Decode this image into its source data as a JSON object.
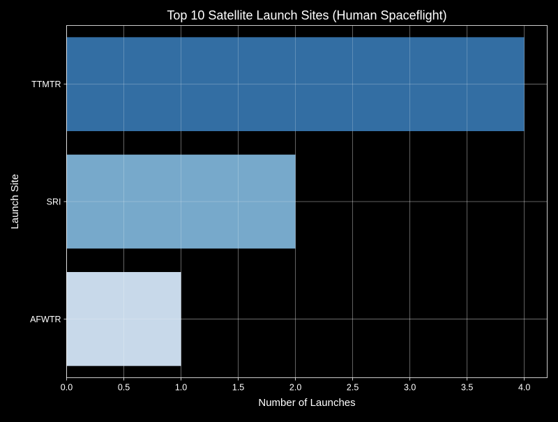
{
  "chart_data": {
    "type": "bar",
    "orientation": "horizontal",
    "title": "Top 10 Satellite Launch Sites (Human Spaceflight)",
    "xlabel": "Number of Launches",
    "ylabel": "Launch Site",
    "categories": [
      "AFWTR",
      "SRI",
      "TTMTR"
    ],
    "values": [
      1,
      2,
      4
    ],
    "bar_colors": [
      "#c8d9ea",
      "#77a9cb",
      "#336ea3"
    ],
    "xlim": [
      0,
      4.2
    ],
    "xticks": [
      "0.0",
      "0.5",
      "1.0",
      "1.5",
      "2.0",
      "2.5",
      "3.0",
      "3.5",
      "4.0"
    ],
    "grid": true,
    "background": "#000000",
    "text_color": "#ffffff"
  }
}
